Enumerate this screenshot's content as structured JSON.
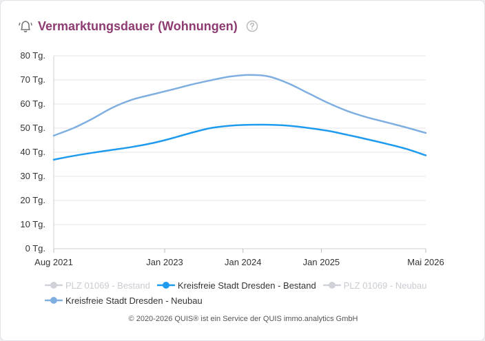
{
  "header": {
    "title": "Vermarktungsdauer (Wohnungen)",
    "icon": "notification-bell-icon",
    "help_icon": "help-circle-icon"
  },
  "chart_data": {
    "type": "line",
    "ylim": [
      0,
      80
    ],
    "y_ticks": [
      {
        "value": 0,
        "label": "0 Tg."
      },
      {
        "value": 10,
        "label": "10 Tg."
      },
      {
        "value": 20,
        "label": "20 Tg."
      },
      {
        "value": 30,
        "label": "30 Tg."
      },
      {
        "value": 40,
        "label": "40 Tg."
      },
      {
        "value": 50,
        "label": "50 Tg."
      },
      {
        "value": 60,
        "label": "60 Tg."
      },
      {
        "value": 70,
        "label": "70 Tg."
      },
      {
        "value": 80,
        "label": "80 Tg."
      }
    ],
    "xlim": [
      "2021-08",
      "2026-05"
    ],
    "x_ticks": [
      {
        "value": "2021-08",
        "label": "Aug 2021"
      },
      {
        "value": "2023-01",
        "label": "Jan 2023"
      },
      {
        "value": "2024-01",
        "label": "Jan 2024"
      },
      {
        "value": "2025-01",
        "label": "Jan 2025"
      },
      {
        "value": "2026-05",
        "label": "Mai 2026"
      }
    ],
    "grid": true,
    "legend_position": "bottom",
    "series": [
      {
        "name": "PLZ 01069 - Bestand",
        "color": "#cfd3d8",
        "visible": false,
        "x": [],
        "values": []
      },
      {
        "name": "Kreisfreie Stadt Dresden - Bestand",
        "color": "#1e9bef",
        "visible": true,
        "x": [
          "2021-08",
          "2021-11",
          "2022-02",
          "2022-05",
          "2022-08",
          "2022-11",
          "2023-02",
          "2023-05",
          "2023-08",
          "2023-11",
          "2024-02",
          "2024-05",
          "2024-08",
          "2024-11",
          "2025-02",
          "2025-05",
          "2025-08",
          "2025-11",
          "2026-02",
          "2026-05"
        ],
        "values": [
          36.9,
          38.5,
          39.8,
          41.0,
          42.2,
          43.7,
          45.7,
          48.0,
          50.0,
          51.0,
          51.4,
          51.4,
          51.0,
          50.1,
          48.9,
          47.2,
          45.4,
          43.5,
          41.4,
          38.7
        ]
      },
      {
        "name": "PLZ 01069 - Neubau",
        "color": "#cfd3d8",
        "visible": false,
        "x": [],
        "values": []
      },
      {
        "name": "Kreisfreie Stadt Dresden - Neubau",
        "color": "#7fafe0",
        "visible": true,
        "x": [
          "2021-08",
          "2021-11",
          "2022-02",
          "2022-05",
          "2022-08",
          "2022-11",
          "2023-02",
          "2023-05",
          "2023-08",
          "2023-11",
          "2024-02",
          "2024-05",
          "2024-08",
          "2024-11",
          "2025-02",
          "2025-05",
          "2025-08",
          "2025-11",
          "2026-02",
          "2026-05"
        ],
        "values": [
          46.9,
          50.0,
          54.0,
          58.5,
          61.8,
          63.9,
          65.9,
          68.0,
          69.8,
          71.4,
          72.1,
          71.4,
          68.5,
          64.5,
          60.5,
          57.1,
          54.5,
          52.4,
          50.3,
          48.0
        ]
      }
    ]
  },
  "footer": "© 2020-2026 QUIS® ist ein Service der QUIS immo.analytics GmbH"
}
